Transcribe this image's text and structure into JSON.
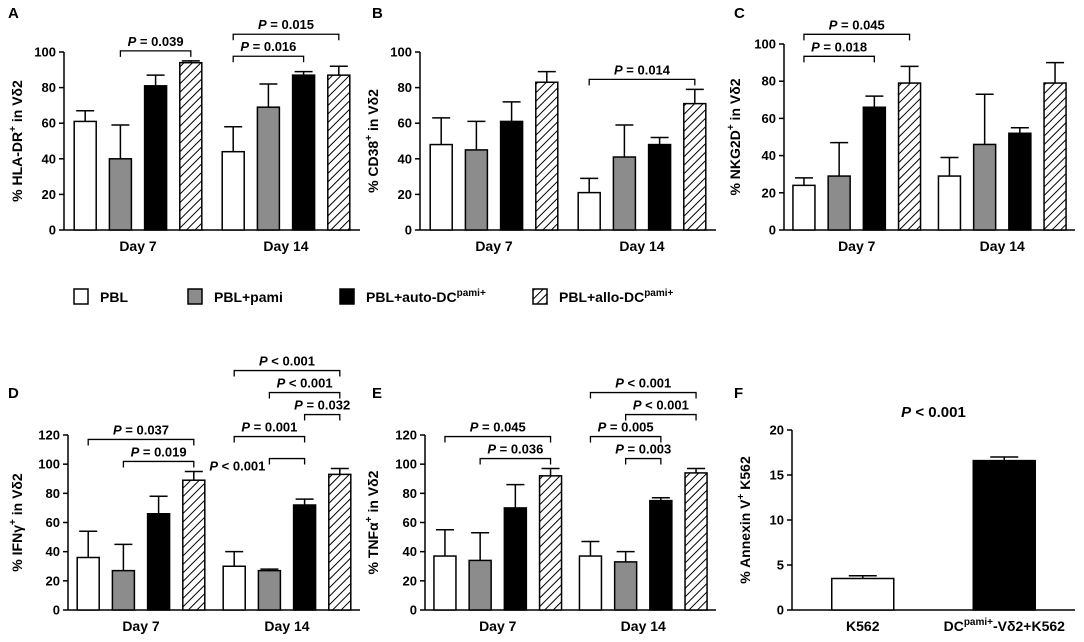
{
  "figure": {
    "series_styles": {
      "PBL": {
        "fill": "#ffffff",
        "hatch": false
      },
      "PBL+pami": {
        "fill": "#8c8c8c",
        "hatch": false
      },
      "PBL+auto-DC": {
        "fill": "#000000",
        "hatch": false
      },
      "PBL+allo-DC": {
        "fill": "#ffffff",
        "hatch": true
      }
    }
  },
  "legend": {
    "items": [
      {
        "series": "PBL",
        "label": "PBL"
      },
      {
        "series": "PBL+pami",
        "label": "PBL+pami"
      },
      {
        "series": "PBL+auto-DC",
        "label": "PBL+auto-DC",
        "sup": "pami+"
      },
      {
        "series": "PBL+allo-DC",
        "label": "PBL+allo-DC",
        "sup": "pami+"
      }
    ]
  },
  "chart_data": [
    {
      "panel": "A",
      "type": "bar",
      "ylabel": {
        "pre": "% HLA-DR",
        "sup": "+",
        "post": " in Vδ2"
      },
      "ylim": [
        0,
        100
      ],
      "yticks": [
        0,
        20,
        40,
        60,
        80,
        100
      ],
      "categories": [
        "Day 7",
        "Day 14"
      ],
      "series": [
        {
          "name": "PBL",
          "values": [
            61,
            44
          ],
          "errors": [
            6,
            14
          ]
        },
        {
          "name": "PBL+pami",
          "values": [
            40,
            69
          ],
          "errors": [
            19,
            13
          ]
        },
        {
          "name": "PBL+auto-DC",
          "values": [
            81,
            87
          ],
          "errors": [
            6,
            2
          ]
        },
        {
          "name": "PBL+allo-DC",
          "values": [
            94,
            87
          ],
          "errors": [
            1,
            5
          ]
        }
      ],
      "comparisons": [
        {
          "group": 0,
          "from": 1,
          "to": 3,
          "level": 0,
          "label": "P = 0.039"
        },
        {
          "group": 1,
          "from": 0,
          "to": 2,
          "level": 0,
          "label": "P = 0.016"
        },
        {
          "group": 1,
          "from": 0,
          "to": 3,
          "level": 1,
          "label": "P = 0.015"
        }
      ]
    },
    {
      "panel": "B",
      "type": "bar",
      "ylabel": {
        "pre": "% CD38",
        "sup": "+",
        "post": " in Vδ2"
      },
      "ylim": [
        0,
        100
      ],
      "yticks": [
        0,
        20,
        40,
        60,
        80,
        100
      ],
      "categories": [
        "Day 7",
        "Day 14"
      ],
      "series": [
        {
          "name": "PBL",
          "values": [
            48,
            21
          ],
          "errors": [
            15,
            8
          ]
        },
        {
          "name": "PBL+pami",
          "values": [
            45,
            41
          ],
          "errors": [
            16,
            18
          ]
        },
        {
          "name": "PBL+auto-DC",
          "values": [
            61,
            48
          ],
          "errors": [
            11,
            4
          ]
        },
        {
          "name": "PBL+allo-DC",
          "values": [
            83,
            71
          ],
          "errors": [
            6,
            8
          ]
        }
      ],
      "comparisons": [
        {
          "group": 1,
          "from": 0,
          "to": 3,
          "level": 0,
          "label": "P = 0.014"
        }
      ]
    },
    {
      "panel": "C",
      "type": "bar",
      "ylabel": {
        "pre": "% NKG2D",
        "sup": "+",
        "post": " in Vδ2"
      },
      "ylim": [
        0,
        100
      ],
      "yticks": [
        0,
        20,
        40,
        60,
        80,
        100
      ],
      "categories": [
        "Day 7",
        "Day 14"
      ],
      "series": [
        {
          "name": "PBL",
          "values": [
            24,
            29
          ],
          "errors": [
            4,
            10
          ]
        },
        {
          "name": "PBL+pami",
          "values": [
            29,
            46
          ],
          "errors": [
            18,
            27
          ]
        },
        {
          "name": "PBL+auto-DC",
          "values": [
            66,
            52
          ],
          "errors": [
            6,
            3
          ]
        },
        {
          "name": "PBL+allo-DC",
          "values": [
            79,
            79
          ],
          "errors": [
            9,
            11
          ]
        }
      ],
      "comparisons": [
        {
          "group": 0,
          "from": 0,
          "to": 2,
          "level": 0,
          "label": "P = 0.018"
        },
        {
          "group": 0,
          "from": 0,
          "to": 3,
          "level": 1,
          "label": "P = 0.045"
        }
      ]
    },
    {
      "panel": "D",
      "type": "bar",
      "ylabel": {
        "pre": "% IFNγ",
        "sup": "+",
        "post": " in Vδ2"
      },
      "ylim": [
        0,
        120
      ],
      "yticks": [
        0,
        20,
        40,
        60,
        80,
        100,
        120
      ],
      "categories": [
        "Day 7",
        "Day 14"
      ],
      "series": [
        {
          "name": "PBL",
          "values": [
            36,
            30
          ],
          "errors": [
            18,
            10
          ]
        },
        {
          "name": "PBL+pami",
          "values": [
            27,
            27
          ],
          "errors": [
            18,
            1
          ]
        },
        {
          "name": "PBL+auto-DC",
          "values": [
            66,
            72
          ],
          "errors": [
            12,
            4
          ]
        },
        {
          "name": "PBL+allo-DC",
          "values": [
            89,
            93
          ],
          "errors": [
            6,
            4
          ]
        }
      ],
      "comparisons": [
        {
          "group": 0,
          "from": 1,
          "to": 3,
          "level": 0,
          "label": "P = 0.019"
        },
        {
          "group": 0,
          "from": 0,
          "to": 3,
          "level": 1,
          "label": "P = 0.037"
        },
        {
          "group": 1,
          "from": 1,
          "to": 2,
          "level": 0,
          "label": "P < 0.001",
          "text_side": "left"
        },
        {
          "group": 1,
          "from": 0,
          "to": 2,
          "level": 1,
          "label": "P = 0.001"
        },
        {
          "group": 1,
          "from": 2,
          "to": 3,
          "level": 2,
          "label": "P = 0.032"
        },
        {
          "group": 1,
          "from": 1,
          "to": 3,
          "level": 3,
          "label": "P < 0.001"
        },
        {
          "group": 1,
          "from": 0,
          "to": 3,
          "level": 4,
          "label": "P < 0.001"
        }
      ]
    },
    {
      "panel": "E",
      "type": "bar",
      "ylabel": {
        "pre": "% TNFα",
        "sup": "+",
        "post": " in Vδ2"
      },
      "ylim": [
        0,
        120
      ],
      "yticks": [
        0,
        20,
        40,
        60,
        80,
        100,
        120
      ],
      "categories": [
        "Day 7",
        "Day 14"
      ],
      "series": [
        {
          "name": "PBL",
          "values": [
            37,
            37
          ],
          "errors": [
            18,
            10
          ]
        },
        {
          "name": "PBL+pami",
          "values": [
            34,
            33
          ],
          "errors": [
            19,
            7
          ]
        },
        {
          "name": "PBL+auto-DC",
          "values": [
            70,
            75
          ],
          "errors": [
            16,
            2
          ]
        },
        {
          "name": "PBL+allo-DC",
          "values": [
            92,
            94
          ],
          "errors": [
            5,
            3
          ]
        }
      ],
      "comparisons": [
        {
          "group": 0,
          "from": 1,
          "to": 3,
          "level": 0,
          "label": "P = 0.036"
        },
        {
          "group": 0,
          "from": 0,
          "to": 3,
          "level": 1,
          "label": "P = 0.045"
        },
        {
          "group": 1,
          "from": 1,
          "to": 2,
          "level": 0,
          "label": "P = 0.003"
        },
        {
          "group": 1,
          "from": 0,
          "to": 2,
          "level": 1,
          "label": "P = 0.005"
        },
        {
          "group": 1,
          "from": 1,
          "to": 3,
          "level": 2,
          "label": "P < 0.001"
        },
        {
          "group": 1,
          "from": 0,
          "to": 3,
          "level": 3,
          "label": "P < 0.001"
        }
      ]
    },
    {
      "panel": "F",
      "type": "bar",
      "ylabel": {
        "pre": "% Annexin V",
        "sup": "+",
        "post": " K562"
      },
      "ylim": [
        0,
        20
      ],
      "yticks": [
        0,
        5,
        10,
        15,
        20
      ],
      "categories": [
        "K562",
        "DC-Vδ2+K562"
      ],
      "category_labels": [
        {
          "parts": [
            {
              "text": "K562"
            }
          ]
        },
        {
          "parts": [
            {
              "text": "DC"
            },
            {
              "text": "pami+",
              "sup": true
            },
            {
              "text": "-Vδ2+K562"
            }
          ]
        }
      ],
      "bars": [
        {
          "category": "K562",
          "value": 3.5,
          "error": 0.3,
          "fill": "#ffffff"
        },
        {
          "category": "DC-Vδ2+K562",
          "value": 16.6,
          "error": 0.4,
          "fill": "#000000"
        }
      ],
      "annotation": "P < 0.001"
    }
  ]
}
